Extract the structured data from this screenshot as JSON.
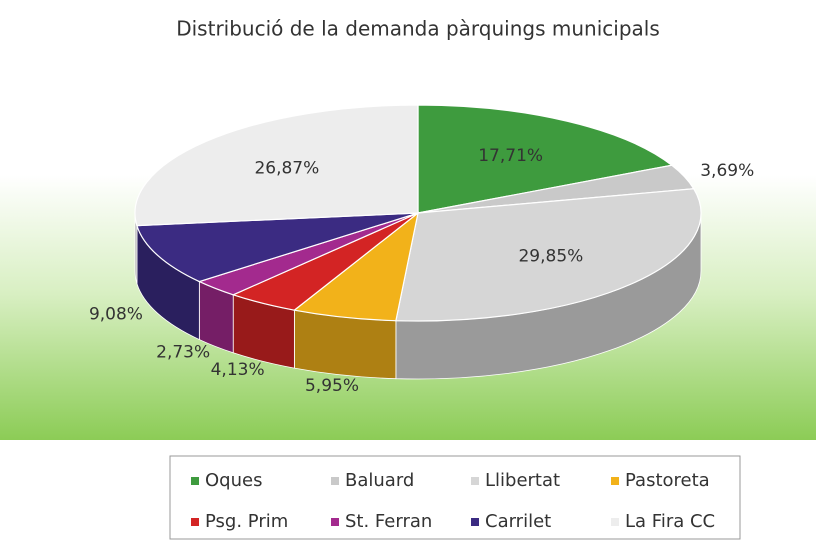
{
  "chart_data": {
    "type": "pie3d",
    "title": "Distribució de la demanda pàrquings municipals",
    "categories": [
      "Oques",
      "Baluard",
      "Llibertat",
      "Pastoreta",
      "Psg. Prim",
      "St. Ferran",
      "Carrilet",
      "La Fira CC"
    ],
    "values": [
      17.71,
      3.69,
      29.85,
      5.95,
      4.13,
      2.73,
      9.08,
      26.87
    ],
    "value_labels": [
      "17,71%",
      "3,69%",
      "29,85%",
      "5,95%",
      "4,13%",
      "2,73%",
      "9,08%",
      "26,87%"
    ],
    "colors": [
      "#3e9b3e",
      "#c9c9c9",
      "#d6d6d6",
      "#f2b21a",
      "#d32424",
      "#a32a8e",
      "#3b2b82",
      "#ededed"
    ],
    "legend": "bottom"
  }
}
